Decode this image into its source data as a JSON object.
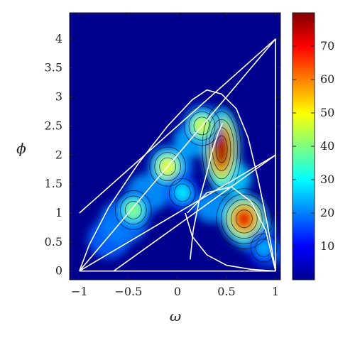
{
  "chart_data": {
    "type": "heatmap",
    "title": "",
    "xlabel": "ω",
    "ylabel": "ϕ",
    "xlim": [
      -1.1,
      1.05
    ],
    "ylim": [
      -0.15,
      4.45
    ],
    "x_ticks": [
      -1,
      -0.5,
      0,
      0.5,
      1
    ],
    "x_tick_labels": [
      "−1",
      "−0.5",
      "0",
      "0.5",
      "1"
    ],
    "y_ticks": [
      0,
      0.5,
      1,
      1.5,
      2,
      2.5,
      3,
      3.5,
      4
    ],
    "y_tick_labels": [
      "0",
      "0.5",
      "1",
      "1.5",
      "2",
      "2.5",
      "3",
      "3.5",
      "4"
    ],
    "colorbar": {
      "colormap": "jet",
      "range": [
        0,
        80
      ],
      "ticks": [
        10,
        20,
        30,
        40,
        50,
        60,
        70
      ],
      "tick_labels": [
        "10",
        "20",
        "30",
        "40",
        "50",
        "60",
        "70"
      ]
    },
    "density_peaks": [
      {
        "omega": 0.45,
        "phi": 2.1,
        "value": 78
      },
      {
        "omega": 0.68,
        "phi": 0.9,
        "value": 72
      },
      {
        "omega": -0.1,
        "phi": 1.8,
        "value": 50
      },
      {
        "omega": -0.45,
        "phi": 1.05,
        "value": 42
      },
      {
        "omega": 0.25,
        "phi": 2.5,
        "value": 48
      },
      {
        "omega": 0.05,
        "phi": 1.35,
        "value": 30
      },
      {
        "omega": 0.88,
        "phi": 0.4,
        "value": 25
      }
    ],
    "contour_levels": [
      8,
      16,
      24,
      32,
      40,
      48,
      56,
      64,
      72
    ],
    "boundary_curves": [
      {
        "name": "",
        "points": [
          [
            -1,
            1
          ],
          [
            1,
            4
          ]
        ]
      },
      {
        "name": "",
        "points": [
          [
            -1,
            0
          ],
          [
            1,
            4
          ]
        ]
      },
      {
        "name": "",
        "points": [
          [
            -1,
            0
          ],
          [
            1,
            2
          ]
        ]
      },
      {
        "name": "",
        "points": [
          [
            -0.65,
            0
          ],
          [
            1,
            2
          ]
        ]
      },
      {
        "name": "",
        "points": [
          [
            1,
            0
          ],
          [
            1,
            4
          ]
        ]
      },
      {
        "name": "",
        "points": [
          [
            -1,
            0
          ],
          [
            1,
            0
          ]
        ]
      },
      {
        "name": "",
        "points": [
          [
            -1,
            0
          ],
          [
            -0.9,
            0.45
          ],
          [
            -0.7,
            1.1
          ],
          [
            -0.4,
            1.85
          ],
          [
            -0.1,
            2.5
          ],
          [
            0.15,
            2.95
          ],
          [
            0.3,
            3.12
          ],
          [
            0.45,
            3.05
          ],
          [
            0.6,
            2.8
          ],
          [
            0.72,
            2.3
          ],
          [
            0.82,
            1.6
          ],
          [
            0.9,
            0.95
          ],
          [
            0.96,
            0.4
          ],
          [
            1,
            0
          ]
        ]
      },
      {
        "name": "",
        "points": [
          [
            0.13,
            0.2
          ],
          [
            0.16,
            0.7
          ],
          [
            0.22,
            1.2
          ],
          [
            0.3,
            1.7
          ],
          [
            0.36,
            2.1
          ],
          [
            0.42,
            2.4
          ],
          [
            0.46,
            2.55
          ]
        ]
      },
      {
        "name": "",
        "points": [
          [
            0.08,
            1.0
          ],
          [
            0.15,
            0.6
          ],
          [
            0.3,
            0.28
          ],
          [
            0.5,
            0.1
          ],
          [
            0.75,
            0.03
          ],
          [
            1,
            0
          ]
        ]
      },
      {
        "name": "",
        "points": [
          [
            0.1,
            1.0
          ],
          [
            0.3,
            1.35
          ],
          [
            0.55,
            1.45
          ],
          [
            0.75,
            1.2
          ],
          [
            0.9,
            0.7
          ],
          [
            1,
            0
          ]
        ]
      }
    ]
  }
}
